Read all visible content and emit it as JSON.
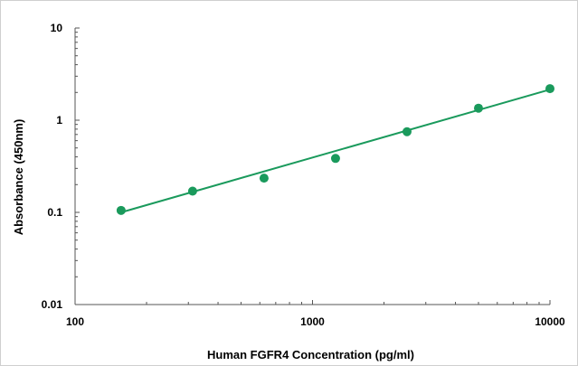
{
  "chart_data": {
    "type": "scatter",
    "xlabel": "Human FGFR4 Concentration (pg/ml)",
    "ylabel": "Absorbance (450nm)",
    "x_scale": "log",
    "y_scale": "log",
    "xlim": [
      100,
      10000
    ],
    "ylim": [
      0.01,
      10
    ],
    "x_ticks": [
      100,
      1000,
      10000
    ],
    "x_tick_labels": [
      "100",
      "1000",
      "10000"
    ],
    "y_ticks": [
      0.01,
      0.1,
      1,
      10
    ],
    "y_tick_labels": [
      "0.01",
      "0.1",
      "1",
      "10"
    ],
    "grid": false,
    "series": [
      {
        "x": [
          156.25,
          312.5,
          625,
          1250,
          2500,
          5000,
          10000
        ],
        "y": [
          0.105,
          0.17,
          0.235,
          0.385,
          0.75,
          1.35,
          2.2
        ],
        "color": "#1a9a5c"
      }
    ],
    "fit_line": {
      "x": [
        156.25,
        10000
      ],
      "y": [
        0.1,
        2.15
      ],
      "color": "#1a9a5c"
    }
  }
}
